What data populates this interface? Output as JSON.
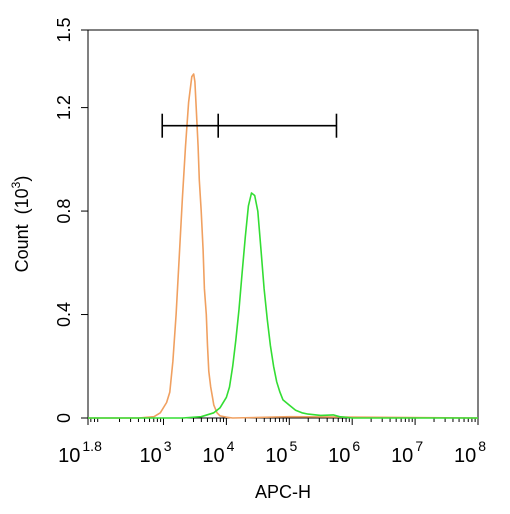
{
  "chart_data": {
    "type": "line",
    "xlabel": "APC-H",
    "ylabel": "Count",
    "ylabel_unit_base": "10",
    "ylabel_unit_exp": "3",
    "x_scale": "log10",
    "xlim": [
      1.8,
      8
    ],
    "ylim": [
      0,
      1.5
    ],
    "x_ticks": [
      {
        "base": "10",
        "exp": "1.8",
        "log": 1.8
      },
      {
        "base": "10",
        "exp": "3",
        "log": 3
      },
      {
        "base": "10",
        "exp": "4",
        "log": 4
      },
      {
        "base": "10",
        "exp": "5",
        "log": 5
      },
      {
        "base": "10",
        "exp": "6",
        "log": 6
      },
      {
        "base": "10",
        "exp": "7",
        "log": 7
      },
      {
        "base": "10",
        "exp": "8",
        "log": 8
      }
    ],
    "y_ticks": [
      {
        "value": 0,
        "label": "0"
      },
      {
        "value": 0.4,
        "label": "0.4"
      },
      {
        "value": 0.8,
        "label": "0.8"
      },
      {
        "value": 1.2,
        "label": "1.2"
      },
      {
        "value": 1.5,
        "label": "1.5"
      }
    ],
    "grid": false,
    "series": [
      {
        "color": "#f0a060",
        "x_log": [
          1.8,
          2.6,
          2.85,
          2.95,
          3.05,
          3.1,
          3.15,
          3.2,
          3.25,
          3.3,
          3.35,
          3.4,
          3.45,
          3.48,
          3.5,
          3.52,
          3.55,
          3.57,
          3.6,
          3.63,
          3.65,
          3.68,
          3.7,
          3.72,
          3.75,
          3.78,
          3.8,
          3.85,
          3.9,
          4.0,
          4.1,
          5.0,
          8.0
        ],
        "y": [
          0,
          0,
          0.005,
          0.02,
          0.06,
          0.1,
          0.22,
          0.4,
          0.62,
          0.85,
          1.05,
          1.22,
          1.32,
          1.33,
          1.3,
          1.2,
          1.05,
          0.92,
          0.8,
          0.65,
          0.5,
          0.4,
          0.28,
          0.18,
          0.12,
          0.08,
          0.05,
          0.02,
          0.008,
          0.003,
          0,
          0.005,
          0
        ]
      },
      {
        "color": "#33dd33",
        "x_log": [
          1.8,
          3.3,
          3.6,
          3.8,
          3.9,
          4.0,
          4.05,
          4.1,
          4.15,
          4.2,
          4.25,
          4.3,
          4.35,
          4.4,
          4.45,
          4.5,
          4.55,
          4.6,
          4.65,
          4.7,
          4.75,
          4.8,
          4.85,
          4.9,
          5.0,
          5.1,
          5.2,
          5.3,
          5.5,
          5.7,
          5.8,
          6.0,
          8.0
        ],
        "y": [
          0,
          0,
          0.005,
          0.02,
          0.04,
          0.08,
          0.12,
          0.2,
          0.3,
          0.42,
          0.56,
          0.7,
          0.82,
          0.87,
          0.86,
          0.8,
          0.65,
          0.5,
          0.38,
          0.28,
          0.2,
          0.14,
          0.1,
          0.07,
          0.05,
          0.03,
          0.02,
          0.015,
          0.01,
          0.012,
          0.005,
          0,
          0
        ]
      }
    ],
    "marker_bar": {
      "y": 1.13,
      "ticks_log": [
        2.98,
        3.87,
        5.75
      ]
    }
  }
}
